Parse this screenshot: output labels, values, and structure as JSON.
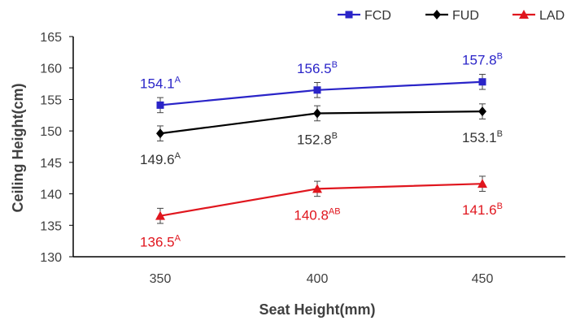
{
  "chart_data": {
    "type": "line",
    "title": "",
    "xlabel": "Seat Height(mm)",
    "ylabel": "Ceiling Height(cm)",
    "categories": [
      "350",
      "400",
      "450"
    ],
    "ylim": [
      130,
      165
    ],
    "yticks": [
      130,
      135,
      140,
      145,
      150,
      155,
      160,
      165
    ],
    "grid": false,
    "legend_position": "top-right",
    "series": [
      {
        "name": "FCD",
        "color": "#2a24c8",
        "marker": "square",
        "values": [
          154.1,
          156.5,
          157.8
        ],
        "error": [
          1.2,
          1.2,
          1.2
        ],
        "value_labels": [
          "154.1",
          "156.5",
          "157.8"
        ],
        "superscripts": [
          "A",
          "B",
          "B"
        ],
        "label_position": "above"
      },
      {
        "name": "FUD",
        "color": "#000000",
        "marker": "diamond",
        "values": [
          149.6,
          152.8,
          153.1
        ],
        "error": [
          1.2,
          1.2,
          1.2
        ],
        "value_labels": [
          "149.6",
          "152.8",
          "153.1"
        ],
        "superscripts": [
          "A",
          "B",
          "B"
        ],
        "label_position": "below"
      },
      {
        "name": "LAD",
        "color": "#e0161e",
        "marker": "triangle",
        "values": [
          136.5,
          140.8,
          141.6
        ],
        "error": [
          1.2,
          1.2,
          1.2
        ],
        "value_labels": [
          "136.5",
          "140.8",
          "141.6"
        ],
        "superscripts": [
          "A",
          "AB",
          "B"
        ],
        "label_position": "below"
      }
    ]
  }
}
